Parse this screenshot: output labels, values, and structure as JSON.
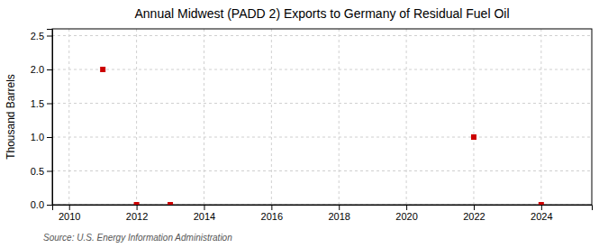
{
  "chart_data": {
    "type": "scatter",
    "title": "Annual Midwest (PADD 2) Exports to Germany of Residual Fuel Oil",
    "ylabel": "Thousand Barrels",
    "source": "Source: U.S. Energy Information Administration",
    "x": [
      2011,
      2012,
      2013,
      2022,
      2024
    ],
    "values": [
      2.0,
      0.0,
      0.0,
      1.0,
      0.0
    ],
    "color": "#cc0000",
    "marker": "square",
    "xlim": [
      2009.5,
      2025.5
    ],
    "ylim": [
      0,
      2.6
    ],
    "xticks": [
      2010,
      2012,
      2014,
      2016,
      2018,
      2020,
      2022,
      2024
    ],
    "yticks": [
      {
        "value": 0.0,
        "label": "0.0"
      },
      0.5,
      {
        "value": 1.0,
        "label": "1.0"
      },
      1.5,
      {
        "value": 2.0,
        "label": "2.0"
      },
      2.5
    ],
    "grid": true
  }
}
